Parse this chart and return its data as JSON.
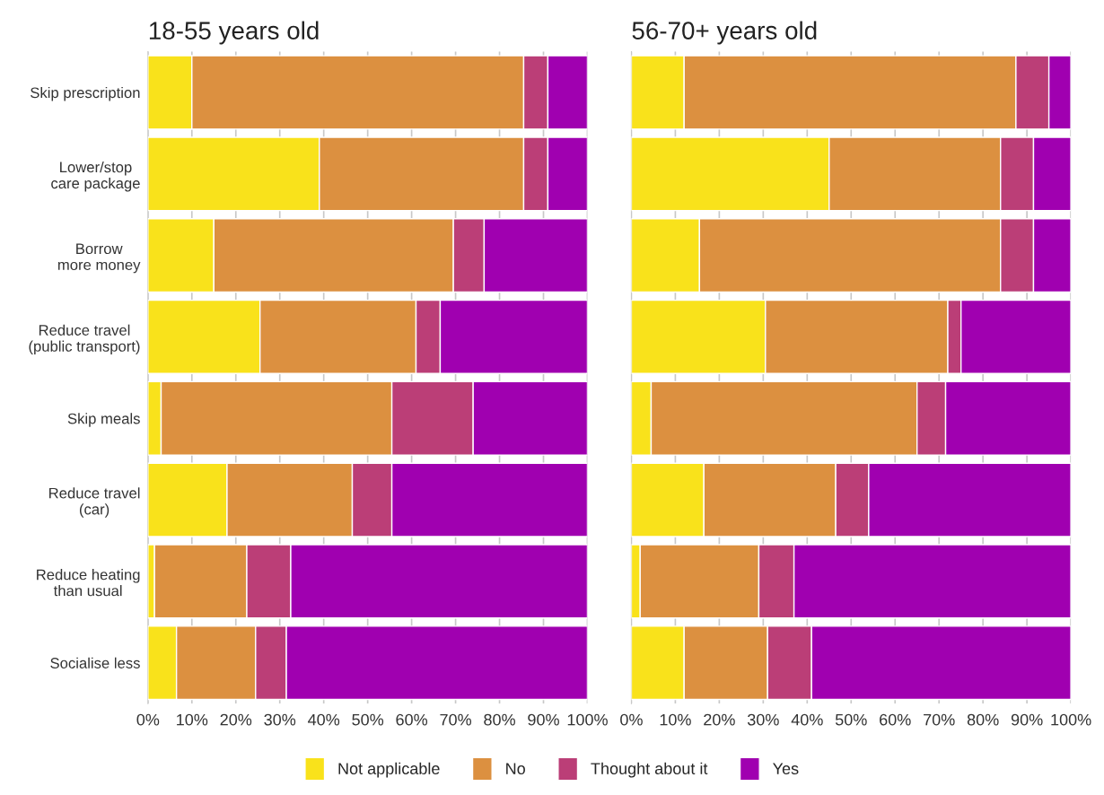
{
  "chart_data": [
    {
      "type": "bar",
      "title": "18-55 years old",
      "orientation": "horizontal",
      "stacked": true,
      "grid": "x",
      "legend": "bottom",
      "categories": [
        "Skip prescription",
        "Lower/stop\ncare package",
        "Borrow\nmore money",
        "Reduce travel\n(public transport)",
        "Skip meals",
        "Reduce travel\n(car)",
        "Reduce heating\nthan usual",
        "Socialise less"
      ],
      "xlim": [
        0,
        100
      ],
      "xticks": [
        {
          "value": 0,
          "label": "0%"
        },
        {
          "value": 10,
          "label": "10%"
        },
        {
          "value": 20,
          "label": "20%"
        },
        {
          "value": 30,
          "label": "30%"
        },
        {
          "value": 40,
          "label": "40%"
        },
        {
          "value": 50,
          "label": "50%"
        },
        {
          "value": 60,
          "label": "60%"
        },
        {
          "value": 70,
          "label": "70%"
        },
        {
          "value": 80,
          "label": "80%"
        },
        {
          "value": 90,
          "label": "90%"
        },
        {
          "value": 100,
          "label": "100%"
        }
      ],
      "series": [
        {
          "name": "Not applicable",
          "color": "#f9e21b",
          "values": [
            10,
            39,
            15,
            25.5,
            3,
            18,
            1.5,
            6.5
          ]
        },
        {
          "name": "No",
          "color": "#dc9040",
          "values": [
            75.5,
            46.5,
            54.5,
            35.5,
            52.5,
            28.5,
            21,
            18
          ]
        },
        {
          "name": "Thought about it",
          "color": "#bb3e77",
          "values": [
            5.5,
            5.5,
            7,
            5.5,
            18.5,
            9,
            10,
            7
          ]
        },
        {
          "name": "Yes",
          "color": "#a000b0",
          "values": [
            9,
            9,
            23.5,
            33.5,
            26,
            44.5,
            67.5,
            68.5
          ]
        }
      ]
    },
    {
      "type": "bar",
      "title": "56-70+ years old",
      "orientation": "horizontal",
      "stacked": true,
      "grid": "x",
      "tick_labels": "x",
      "xlim": [
        0,
        100
      ],
      "xticks": [
        {
          "value": 0,
          "label": "0%"
        },
        {
          "value": 10,
          "label": "10%"
        },
        {
          "value": 20,
          "label": "20%"
        },
        {
          "value": 30,
          "label": "30%"
        },
        {
          "value": 40,
          "label": "40%"
        },
        {
          "value": 50,
          "label": "50%"
        },
        {
          "value": 60,
          "label": "60%"
        },
        {
          "value": 70,
          "label": "70%"
        },
        {
          "value": 80,
          "label": "80%"
        },
        {
          "value": 90,
          "label": "90%"
        },
        {
          "value": 100,
          "label": "100%"
        }
      ],
      "series": [
        {
          "color": "#f9e21b",
          "values": [
            12,
            45,
            15.5,
            30.5,
            4.5,
            16.5,
            2,
            12
          ]
        },
        {
          "color": "#dc9040",
          "values": [
            75.5,
            39,
            68.5,
            41.5,
            60.5,
            30,
            27,
            19
          ]
        },
        {
          "color": "#bb3e77",
          "values": [
            7.5,
            7.5,
            7.5,
            3,
            6.5,
            7.5,
            8,
            10
          ]
        },
        {
          "color": "#a000b0",
          "values": [
            5,
            8.5,
            8.5,
            25,
            28.5,
            46,
            63,
            59
          ]
        }
      ]
    }
  ]
}
